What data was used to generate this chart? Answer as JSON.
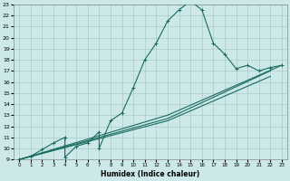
{
  "xlabel": "Humidex (Indice chaleur)",
  "xlim": [
    -0.5,
    23.5
  ],
  "ylim": [
    9,
    23
  ],
  "xticks": [
    0,
    1,
    2,
    3,
    4,
    5,
    6,
    7,
    8,
    9,
    10,
    11,
    12,
    13,
    14,
    15,
    16,
    17,
    18,
    19,
    20,
    21,
    22,
    23
  ],
  "yticks": [
    9,
    10,
    11,
    12,
    13,
    14,
    15,
    16,
    17,
    18,
    19,
    20,
    21,
    22,
    23
  ],
  "bg_color": "#cce8e8",
  "grid_color": "#aacccc",
  "line_color": "#1a6b5e",
  "line1_x": [
    0,
    1,
    2,
    3,
    4,
    4,
    5,
    6,
    7,
    7,
    8,
    9,
    10,
    11,
    12,
    13,
    14,
    15,
    16,
    17,
    18,
    19,
    20,
    21,
    22,
    23
  ],
  "line1_y": [
    9,
    9.3,
    9.9,
    10.5,
    11.0,
    9.2,
    10.2,
    10.5,
    11.5,
    10.0,
    12.5,
    13.2,
    15.5,
    18.0,
    19.5,
    21.5,
    22.5,
    23.3,
    22.5,
    19.5,
    18.5,
    17.2,
    17.5,
    17.0,
    17.3,
    17.5
  ],
  "line2_x": [
    0,
    13,
    23
  ],
  "line2_y": [
    9,
    13.0,
    17.5
  ],
  "line3_x": [
    0,
    13,
    22
  ],
  "line3_y": [
    9,
    12.7,
    17.0
  ],
  "line4_x": [
    0,
    13,
    22
  ],
  "line4_y": [
    9,
    12.5,
    16.5
  ]
}
